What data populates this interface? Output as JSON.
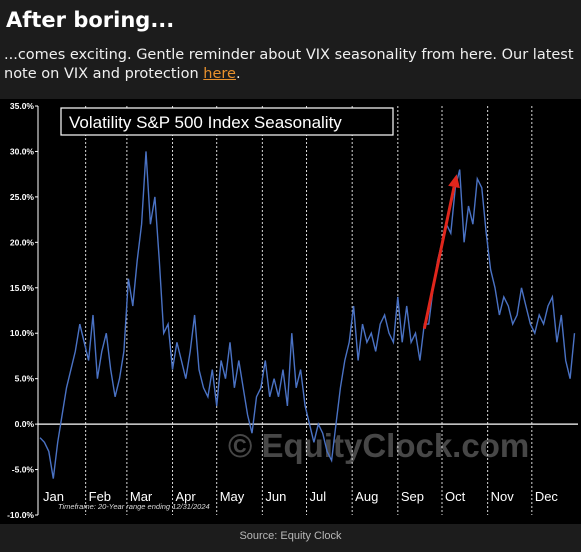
{
  "post": {
    "title": "After boring...",
    "text_before_link": "...comes exciting. Gentle reminder about VIX seasonality from here. Our latest note on VIX and protection ",
    "link_text": "here",
    "text_after_link": ".",
    "source": "Source: Equity Clock"
  },
  "colors": {
    "background": "#1c1c1c",
    "chart_background": "#000000",
    "line": "#4a72c4",
    "arrow": "#e0261c",
    "link": "#e8912d"
  },
  "chart_data": {
    "type": "line",
    "title": "Volatility S&P 500 Index Seasonality",
    "footnote": "Timeframe: 20-Year range ending 12/31/2024",
    "watermark": "© EquityClock.com",
    "ylim": [
      -10,
      35
    ],
    "yticks": [
      "-10.0%",
      "-5.0%",
      "0.0%",
      "5.0%",
      "10.0%",
      "15.0%",
      "20.0%",
      "25.0%",
      "30.0%",
      "35.0%"
    ],
    "ytick_values": [
      -10,
      -5,
      0,
      5,
      10,
      15,
      20,
      25,
      30,
      35
    ],
    "months": [
      "Jan",
      "Feb",
      "Mar",
      "Apr",
      "May",
      "Jun",
      "Jul",
      "Aug",
      "Sep",
      "Oct",
      "Nov",
      "Dec"
    ],
    "grid": true,
    "x_unit": "day of year",
    "series": [
      {
        "x": [
          1,
          4,
          7,
          10,
          13,
          16,
          19,
          22,
          25,
          28,
          31,
          34,
          37,
          40,
          43,
          46,
          49,
          52,
          55,
          58,
          61,
          64,
          67,
          70,
          73,
          76,
          79,
          82,
          85,
          88,
          91,
          94,
          97,
          100,
          103,
          106,
          109,
          112,
          115,
          118,
          121,
          124,
          127,
          130,
          133,
          136,
          139,
          142,
          145,
          148,
          151,
          154,
          157,
          160,
          163,
          166,
          169,
          172,
          175,
          178,
          181,
          184,
          187,
          190,
          193,
          196,
          199,
          202,
          205,
          208,
          211,
          214,
          217,
          220,
          223,
          226,
          229,
          232,
          235,
          238,
          241,
          244,
          247,
          250,
          253,
          256,
          259,
          262,
          265,
          268,
          271,
          274,
          277,
          280,
          283,
          286,
          289,
          292,
          295,
          298,
          301,
          304,
          307,
          310,
          313,
          316,
          319,
          322,
          325,
          328,
          331,
          334,
          337,
          340,
          343,
          346,
          349,
          352,
          355,
          358,
          361,
          364
        ],
        "y": [
          -1.5,
          -2,
          -3,
          -6,
          -2,
          1,
          4,
          6,
          8,
          11,
          9,
          7,
          12,
          5,
          8,
          10,
          6,
          3,
          5,
          8,
          16,
          13,
          18,
          22,
          30,
          22,
          25,
          18,
          10,
          11,
          6,
          9,
          7,
          5,
          8,
          12,
          6,
          4,
          3,
          6,
          2,
          7,
          5,
          9,
          4,
          7,
          4,
          1,
          -1,
          3,
          4,
          7,
          3,
          5,
          3,
          6,
          2,
          10,
          4,
          6,
          2,
          0,
          -2,
          0,
          -1,
          -3,
          -4,
          0,
          4,
          7,
          9,
          13,
          7,
          11,
          9,
          10,
          8,
          11,
          12,
          10,
          9,
          14,
          9,
          13,
          9,
          10,
          7,
          11,
          11,
          15,
          18,
          20,
          22,
          21,
          26,
          28,
          20,
          24,
          22,
          27,
          26,
          21,
          17,
          15,
          12,
          14,
          13,
          11,
          12,
          15,
          13,
          11,
          10,
          12,
          11,
          13,
          14,
          9,
          12,
          7,
          5,
          10
        ],
        "name": ""
      }
    ],
    "annotation": {
      "type": "arrow",
      "from": {
        "x": 262,
        "y": 10.5
      },
      "to": {
        "x": 284,
        "y": 27.5
      }
    }
  }
}
